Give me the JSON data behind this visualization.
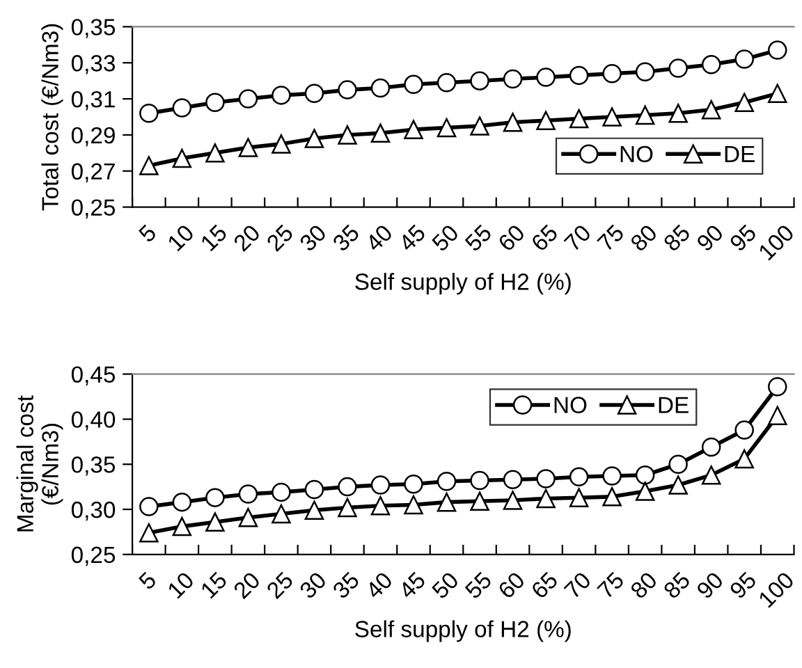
{
  "chart_data": [
    {
      "type": "line",
      "xlabel": "Self supply of H2 (%)",
      "ylabel": "Total cost (€/Nm3)",
      "categories": [
        "5",
        "10",
        "15",
        "20",
        "25",
        "30",
        "35",
        "40",
        "45",
        "50",
        "55",
        "60",
        "65",
        "70",
        "75",
        "80",
        "85",
        "90",
        "95",
        "100"
      ],
      "series": [
        {
          "name": "NO",
          "color": "#000000",
          "marker": "circle",
          "values": [
            0.302,
            0.305,
            0.308,
            0.31,
            0.312,
            0.313,
            0.315,
            0.316,
            0.318,
            0.319,
            0.32,
            0.321,
            0.322,
            0.323,
            0.324,
            0.325,
            0.327,
            0.329,
            0.332,
            0.337
          ]
        },
        {
          "name": "DE",
          "color": "#000000",
          "marker": "triangle",
          "values": [
            0.273,
            0.277,
            0.28,
            0.283,
            0.285,
            0.288,
            0.29,
            0.291,
            0.293,
            0.294,
            0.295,
            0.297,
            0.298,
            0.299,
            0.3,
            0.301,
            0.302,
            0.304,
            0.308,
            0.313
          ]
        }
      ],
      "ylim": [
        0.25,
        0.35
      ],
      "yticks": [
        {
          "value": 0.25,
          "label": "0,25"
        },
        {
          "value": 0.27,
          "label": "0,27"
        },
        {
          "value": 0.29,
          "label": "0,29"
        },
        {
          "value": 0.31,
          "label": "0,31"
        },
        {
          "value": 0.33,
          "label": "0,33"
        },
        {
          "value": 0.35,
          "label": "0,35"
        }
      ],
      "legend": "bottom right",
      "grid": false,
      "line_style": "solid"
    },
    {
      "type": "line",
      "xlabel": "Self supply of H2 (%)",
      "ylabel": "Marginal cost\n(€/Nm3)",
      "categories": [
        "5",
        "10",
        "15",
        "20",
        "25",
        "30",
        "35",
        "40",
        "45",
        "50",
        "55",
        "60",
        "65",
        "70",
        "75",
        "80",
        "85",
        "90",
        "95",
        "100"
      ],
      "series": [
        {
          "name": "NO",
          "color": "#000000",
          "marker": "circle",
          "values": [
            0.303,
            0.308,
            0.313,
            0.317,
            0.319,
            0.322,
            0.325,
            0.327,
            0.328,
            0.331,
            0.332,
            0.333,
            0.334,
            0.336,
            0.337,
            0.338,
            0.35,
            0.369,
            0.388,
            0.436
          ]
        },
        {
          "name": "DE",
          "color": "#000000",
          "marker": "triangle",
          "values": [
            0.274,
            0.281,
            0.286,
            0.291,
            0.295,
            0.299,
            0.302,
            0.304,
            0.305,
            0.308,
            0.309,
            0.31,
            0.312,
            0.313,
            0.314,
            0.32,
            0.327,
            0.338,
            0.356,
            0.404
          ]
        }
      ],
      "ylim": [
        0.25,
        0.45
      ],
      "yticks": [
        {
          "value": 0.25,
          "label": "0,25"
        },
        {
          "value": 0.3,
          "label": "0,30"
        },
        {
          "value": 0.35,
          "label": "0,35"
        },
        {
          "value": 0.4,
          "label": "0,40"
        },
        {
          "value": 0.45,
          "label": "0,45"
        }
      ],
      "legend": "top right",
      "grid": false,
      "line_style": "solid"
    }
  ]
}
